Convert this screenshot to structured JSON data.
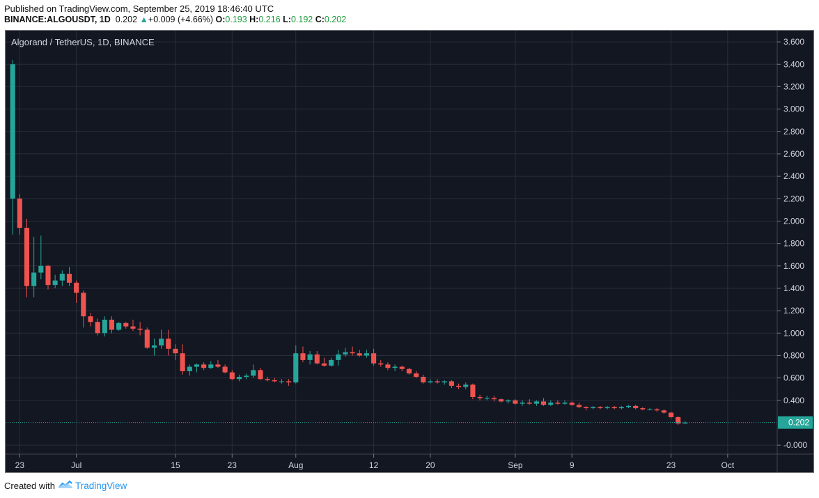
{
  "header": {
    "published": "Published on TradingView.com, September 25, 2019 18:46:40 UTC",
    "symbol": "BINANCE:ALGOUSDT, 1D",
    "last": "0.202",
    "change_arrow": "▲",
    "change": "+0.009 (+4.66%)",
    "o_label": "O:",
    "o_value": "0.193",
    "h_label": "H:",
    "h_value": "0.216",
    "l_label": "L:",
    "l_value": "0.192",
    "c_label": "C:",
    "c_value": "0.202"
  },
  "footer": {
    "created_with": "Created with",
    "brand": "TradingView",
    "logo_icon": "tradingview-cloud-icon"
  },
  "colors": {
    "background": "#131722",
    "grid": "#2a2e39",
    "up": "#26a69a",
    "down": "#ef5350",
    "axis_text": "#d1d4dc",
    "price_line": "#26a69a"
  },
  "chart_data": {
    "type": "candlestick",
    "title": "Algorand / TetherUS, 1D, BINANCE",
    "y_ticks": [
      "3.600",
      "3.400",
      "3.200",
      "3.000",
      "2.800",
      "2.600",
      "2.400",
      "2.200",
      "2.000",
      "1.800",
      "1.600",
      "1.400",
      "1.200",
      "1.000",
      "0.800",
      "0.600",
      "0.400",
      "0.202",
      "-0.000"
    ],
    "ylim": [
      -0.08,
      3.7
    ],
    "x_ticks": [
      "23",
      "Jul",
      "15",
      "23",
      "Aug",
      "12",
      "20",
      "Sep",
      "9",
      "23",
      "Oct"
    ],
    "x_tick_dates": [
      "2019-06-23",
      "2019-07-01",
      "2019-07-15",
      "2019-07-23",
      "2019-08-01",
      "2019-08-12",
      "2019-08-20",
      "2019-09-01",
      "2019-09-09",
      "2019-09-23",
      "2019-10-01"
    ],
    "x_range": [
      "2019-06-21",
      "2019-10-08"
    ],
    "last_price": 0.202,
    "last_price_label": "0.202",
    "grid": true,
    "candles": [
      {
        "d": "2019-06-22",
        "o": 2.2,
        "h": 3.44,
        "l": 1.88,
        "c": 3.4
      },
      {
        "d": "2019-06-23",
        "o": 2.2,
        "h": 2.24,
        "l": 1.88,
        "c": 1.94
      },
      {
        "d": "2019-06-24",
        "o": 1.94,
        "h": 2.02,
        "l": 1.32,
        "c": 1.42
      },
      {
        "d": "2019-06-25",
        "o": 1.42,
        "h": 1.86,
        "l": 1.32,
        "c": 1.54
      },
      {
        "d": "2019-06-26",
        "o": 1.54,
        "h": 1.87,
        "l": 1.48,
        "c": 1.6
      },
      {
        "d": "2019-06-27",
        "o": 1.6,
        "h": 1.61,
        "l": 1.39,
        "c": 1.43
      },
      {
        "d": "2019-06-28",
        "o": 1.43,
        "h": 1.52,
        "l": 1.4,
        "c": 1.47
      },
      {
        "d": "2019-06-29",
        "o": 1.47,
        "h": 1.56,
        "l": 1.42,
        "c": 1.53
      },
      {
        "d": "2019-06-30",
        "o": 1.53,
        "h": 1.59,
        "l": 1.42,
        "c": 1.45
      },
      {
        "d": "2019-07-01",
        "o": 1.45,
        "h": 1.47,
        "l": 1.27,
        "c": 1.36
      },
      {
        "d": "2019-07-02",
        "o": 1.36,
        "h": 1.38,
        "l": 1.05,
        "c": 1.15
      },
      {
        "d": "2019-07-03",
        "o": 1.15,
        "h": 1.18,
        "l": 1.06,
        "c": 1.1
      },
      {
        "d": "2019-07-04",
        "o": 1.1,
        "h": 1.13,
        "l": 0.98,
        "c": 1.0
      },
      {
        "d": "2019-07-05",
        "o": 1.0,
        "h": 1.15,
        "l": 0.97,
        "c": 1.12
      },
      {
        "d": "2019-07-06",
        "o": 1.12,
        "h": 1.15,
        "l": 1.0,
        "c": 1.03
      },
      {
        "d": "2019-07-07",
        "o": 1.03,
        "h": 1.1,
        "l": 1.02,
        "c": 1.09
      },
      {
        "d": "2019-07-08",
        "o": 1.09,
        "h": 1.1,
        "l": 1.04,
        "c": 1.06
      },
      {
        "d": "2019-07-09",
        "o": 1.06,
        "h": 1.12,
        "l": 1.02,
        "c": 1.04
      },
      {
        "d": "2019-07-10",
        "o": 1.04,
        "h": 1.1,
        "l": 0.98,
        "c": 1.03
      },
      {
        "d": "2019-07-11",
        "o": 1.03,
        "h": 1.05,
        "l": 0.86,
        "c": 0.87
      },
      {
        "d": "2019-07-12",
        "o": 0.87,
        "h": 0.95,
        "l": 0.8,
        "c": 0.89
      },
      {
        "d": "2019-07-13",
        "o": 0.89,
        "h": 1.03,
        "l": 0.86,
        "c": 0.95
      },
      {
        "d": "2019-07-14",
        "o": 0.95,
        "h": 1.03,
        "l": 0.8,
        "c": 0.86
      },
      {
        "d": "2019-07-15",
        "o": 0.86,
        "h": 0.9,
        "l": 0.76,
        "c": 0.82
      },
      {
        "d": "2019-07-16",
        "o": 0.82,
        "h": 0.9,
        "l": 0.63,
        "c": 0.66
      },
      {
        "d": "2019-07-17",
        "o": 0.66,
        "h": 0.72,
        "l": 0.62,
        "c": 0.7
      },
      {
        "d": "2019-07-18",
        "o": 0.7,
        "h": 0.73,
        "l": 0.65,
        "c": 0.72
      },
      {
        "d": "2019-07-19",
        "o": 0.72,
        "h": 0.74,
        "l": 0.67,
        "c": 0.69
      },
      {
        "d": "2019-07-20",
        "o": 0.69,
        "h": 0.75,
        "l": 0.68,
        "c": 0.72
      },
      {
        "d": "2019-07-21",
        "o": 0.72,
        "h": 0.76,
        "l": 0.69,
        "c": 0.7
      },
      {
        "d": "2019-07-22",
        "o": 0.7,
        "h": 0.72,
        "l": 0.64,
        "c": 0.65
      },
      {
        "d": "2019-07-23",
        "o": 0.65,
        "h": 0.67,
        "l": 0.58,
        "c": 0.59
      },
      {
        "d": "2019-07-24",
        "o": 0.59,
        "h": 0.63,
        "l": 0.57,
        "c": 0.61
      },
      {
        "d": "2019-07-25",
        "o": 0.61,
        "h": 0.64,
        "l": 0.59,
        "c": 0.62
      },
      {
        "d": "2019-07-26",
        "o": 0.62,
        "h": 0.72,
        "l": 0.6,
        "c": 0.67
      },
      {
        "d": "2019-07-27",
        "o": 0.67,
        "h": 0.69,
        "l": 0.58,
        "c": 0.59
      },
      {
        "d": "2019-07-28",
        "o": 0.59,
        "h": 0.61,
        "l": 0.57,
        "c": 0.58
      },
      {
        "d": "2019-07-29",
        "o": 0.58,
        "h": 0.6,
        "l": 0.56,
        "c": 0.57
      },
      {
        "d": "2019-07-30",
        "o": 0.57,
        "h": 0.59,
        "l": 0.55,
        "c": 0.57
      },
      {
        "d": "2019-07-31",
        "o": 0.57,
        "h": 0.59,
        "l": 0.53,
        "c": 0.56
      },
      {
        "d": "2019-08-01",
        "o": 0.56,
        "h": 0.89,
        "l": 0.55,
        "c": 0.82
      },
      {
        "d": "2019-08-02",
        "o": 0.82,
        "h": 0.88,
        "l": 0.74,
        "c": 0.76
      },
      {
        "d": "2019-08-03",
        "o": 0.76,
        "h": 0.84,
        "l": 0.72,
        "c": 0.81
      },
      {
        "d": "2019-08-04",
        "o": 0.81,
        "h": 0.84,
        "l": 0.72,
        "c": 0.73
      },
      {
        "d": "2019-08-05",
        "o": 0.73,
        "h": 0.78,
        "l": 0.7,
        "c": 0.71
      },
      {
        "d": "2019-08-06",
        "o": 0.71,
        "h": 0.78,
        "l": 0.7,
        "c": 0.76
      },
      {
        "d": "2019-08-07",
        "o": 0.76,
        "h": 0.85,
        "l": 0.71,
        "c": 0.81
      },
      {
        "d": "2019-08-08",
        "o": 0.81,
        "h": 0.87,
        "l": 0.79,
        "c": 0.83
      },
      {
        "d": "2019-08-09",
        "o": 0.83,
        "h": 0.88,
        "l": 0.8,
        "c": 0.82
      },
      {
        "d": "2019-08-10",
        "o": 0.82,
        "h": 0.85,
        "l": 0.79,
        "c": 0.8
      },
      {
        "d": "2019-08-11",
        "o": 0.8,
        "h": 0.85,
        "l": 0.78,
        "c": 0.82
      },
      {
        "d": "2019-08-12",
        "o": 0.82,
        "h": 0.86,
        "l": 0.71,
        "c": 0.73
      },
      {
        "d": "2019-08-13",
        "o": 0.73,
        "h": 0.76,
        "l": 0.7,
        "c": 0.72
      },
      {
        "d": "2019-08-14",
        "o": 0.72,
        "h": 0.74,
        "l": 0.67,
        "c": 0.69
      },
      {
        "d": "2019-08-15",
        "o": 0.69,
        "h": 0.72,
        "l": 0.66,
        "c": 0.7
      },
      {
        "d": "2019-08-16",
        "o": 0.7,
        "h": 0.71,
        "l": 0.66,
        "c": 0.68
      },
      {
        "d": "2019-08-17",
        "o": 0.68,
        "h": 0.69,
        "l": 0.63,
        "c": 0.64
      },
      {
        "d": "2019-08-18",
        "o": 0.64,
        "h": 0.66,
        "l": 0.6,
        "c": 0.61
      },
      {
        "d": "2019-08-19",
        "o": 0.61,
        "h": 0.63,
        "l": 0.55,
        "c": 0.56
      },
      {
        "d": "2019-08-20",
        "o": 0.56,
        "h": 0.59,
        "l": 0.55,
        "c": 0.57
      },
      {
        "d": "2019-08-21",
        "o": 0.57,
        "h": 0.59,
        "l": 0.55,
        "c": 0.56
      },
      {
        "d": "2019-08-22",
        "o": 0.56,
        "h": 0.58,
        "l": 0.54,
        "c": 0.57
      },
      {
        "d": "2019-08-23",
        "o": 0.57,
        "h": 0.58,
        "l": 0.51,
        "c": 0.53
      },
      {
        "d": "2019-08-24",
        "o": 0.53,
        "h": 0.55,
        "l": 0.5,
        "c": 0.52
      },
      {
        "d": "2019-08-25",
        "o": 0.52,
        "h": 0.56,
        "l": 0.5,
        "c": 0.54
      },
      {
        "d": "2019-08-26",
        "o": 0.54,
        "h": 0.55,
        "l": 0.41,
        "c": 0.43
      },
      {
        "d": "2019-08-27",
        "o": 0.43,
        "h": 0.45,
        "l": 0.4,
        "c": 0.42
      },
      {
        "d": "2019-08-28",
        "o": 0.42,
        "h": 0.44,
        "l": 0.4,
        "c": 0.42
      },
      {
        "d": "2019-08-29",
        "o": 0.42,
        "h": 0.44,
        "l": 0.39,
        "c": 0.41
      },
      {
        "d": "2019-08-30",
        "o": 0.41,
        "h": 0.42,
        "l": 0.38,
        "c": 0.39
      },
      {
        "d": "2019-08-31",
        "o": 0.39,
        "h": 0.41,
        "l": 0.37,
        "c": 0.4
      },
      {
        "d": "2019-09-01",
        "o": 0.4,
        "h": 0.41,
        "l": 0.36,
        "c": 0.37
      },
      {
        "d": "2019-09-02",
        "o": 0.37,
        "h": 0.4,
        "l": 0.35,
        "c": 0.38
      },
      {
        "d": "2019-09-03",
        "o": 0.38,
        "h": 0.41,
        "l": 0.36,
        "c": 0.37
      },
      {
        "d": "2019-09-04",
        "o": 0.37,
        "h": 0.4,
        "l": 0.35,
        "c": 0.39
      },
      {
        "d": "2019-09-05",
        "o": 0.39,
        "h": 0.42,
        "l": 0.35,
        "c": 0.36
      },
      {
        "d": "2019-09-06",
        "o": 0.36,
        "h": 0.4,
        "l": 0.35,
        "c": 0.38
      },
      {
        "d": "2019-09-07",
        "o": 0.38,
        "h": 0.4,
        "l": 0.36,
        "c": 0.37
      },
      {
        "d": "2019-09-08",
        "o": 0.37,
        "h": 0.4,
        "l": 0.36,
        "c": 0.38
      },
      {
        "d": "2019-09-09",
        "o": 0.38,
        "h": 0.39,
        "l": 0.35,
        "c": 0.36
      },
      {
        "d": "2019-09-10",
        "o": 0.36,
        "h": 0.38,
        "l": 0.33,
        "c": 0.34
      },
      {
        "d": "2019-09-11",
        "o": 0.34,
        "h": 0.35,
        "l": 0.31,
        "c": 0.33
      },
      {
        "d": "2019-09-12",
        "o": 0.33,
        "h": 0.35,
        "l": 0.32,
        "c": 0.34
      },
      {
        "d": "2019-09-13",
        "o": 0.34,
        "h": 0.35,
        "l": 0.32,
        "c": 0.33
      },
      {
        "d": "2019-09-14",
        "o": 0.33,
        "h": 0.35,
        "l": 0.32,
        "c": 0.34
      },
      {
        "d": "2019-09-15",
        "o": 0.34,
        "h": 0.35,
        "l": 0.32,
        "c": 0.33
      },
      {
        "d": "2019-09-16",
        "o": 0.33,
        "h": 0.35,
        "l": 0.32,
        "c": 0.34
      },
      {
        "d": "2019-09-17",
        "o": 0.34,
        "h": 0.36,
        "l": 0.33,
        "c": 0.35
      },
      {
        "d": "2019-09-18",
        "o": 0.35,
        "h": 0.36,
        "l": 0.32,
        "c": 0.33
      },
      {
        "d": "2019-09-19",
        "o": 0.33,
        "h": 0.34,
        "l": 0.31,
        "c": 0.32
      },
      {
        "d": "2019-09-20",
        "o": 0.32,
        "h": 0.33,
        "l": 0.31,
        "c": 0.32
      },
      {
        "d": "2019-09-21",
        "o": 0.32,
        "h": 0.33,
        "l": 0.3,
        "c": 0.31
      },
      {
        "d": "2019-09-22",
        "o": 0.31,
        "h": 0.32,
        "l": 0.28,
        "c": 0.29
      },
      {
        "d": "2019-09-23",
        "o": 0.29,
        "h": 0.3,
        "l": 0.24,
        "c": 0.25
      },
      {
        "d": "2019-09-24",
        "o": 0.25,
        "h": 0.26,
        "l": 0.18,
        "c": 0.193
      },
      {
        "d": "2019-09-25",
        "o": 0.193,
        "h": 0.216,
        "l": 0.192,
        "c": 0.202
      }
    ]
  }
}
